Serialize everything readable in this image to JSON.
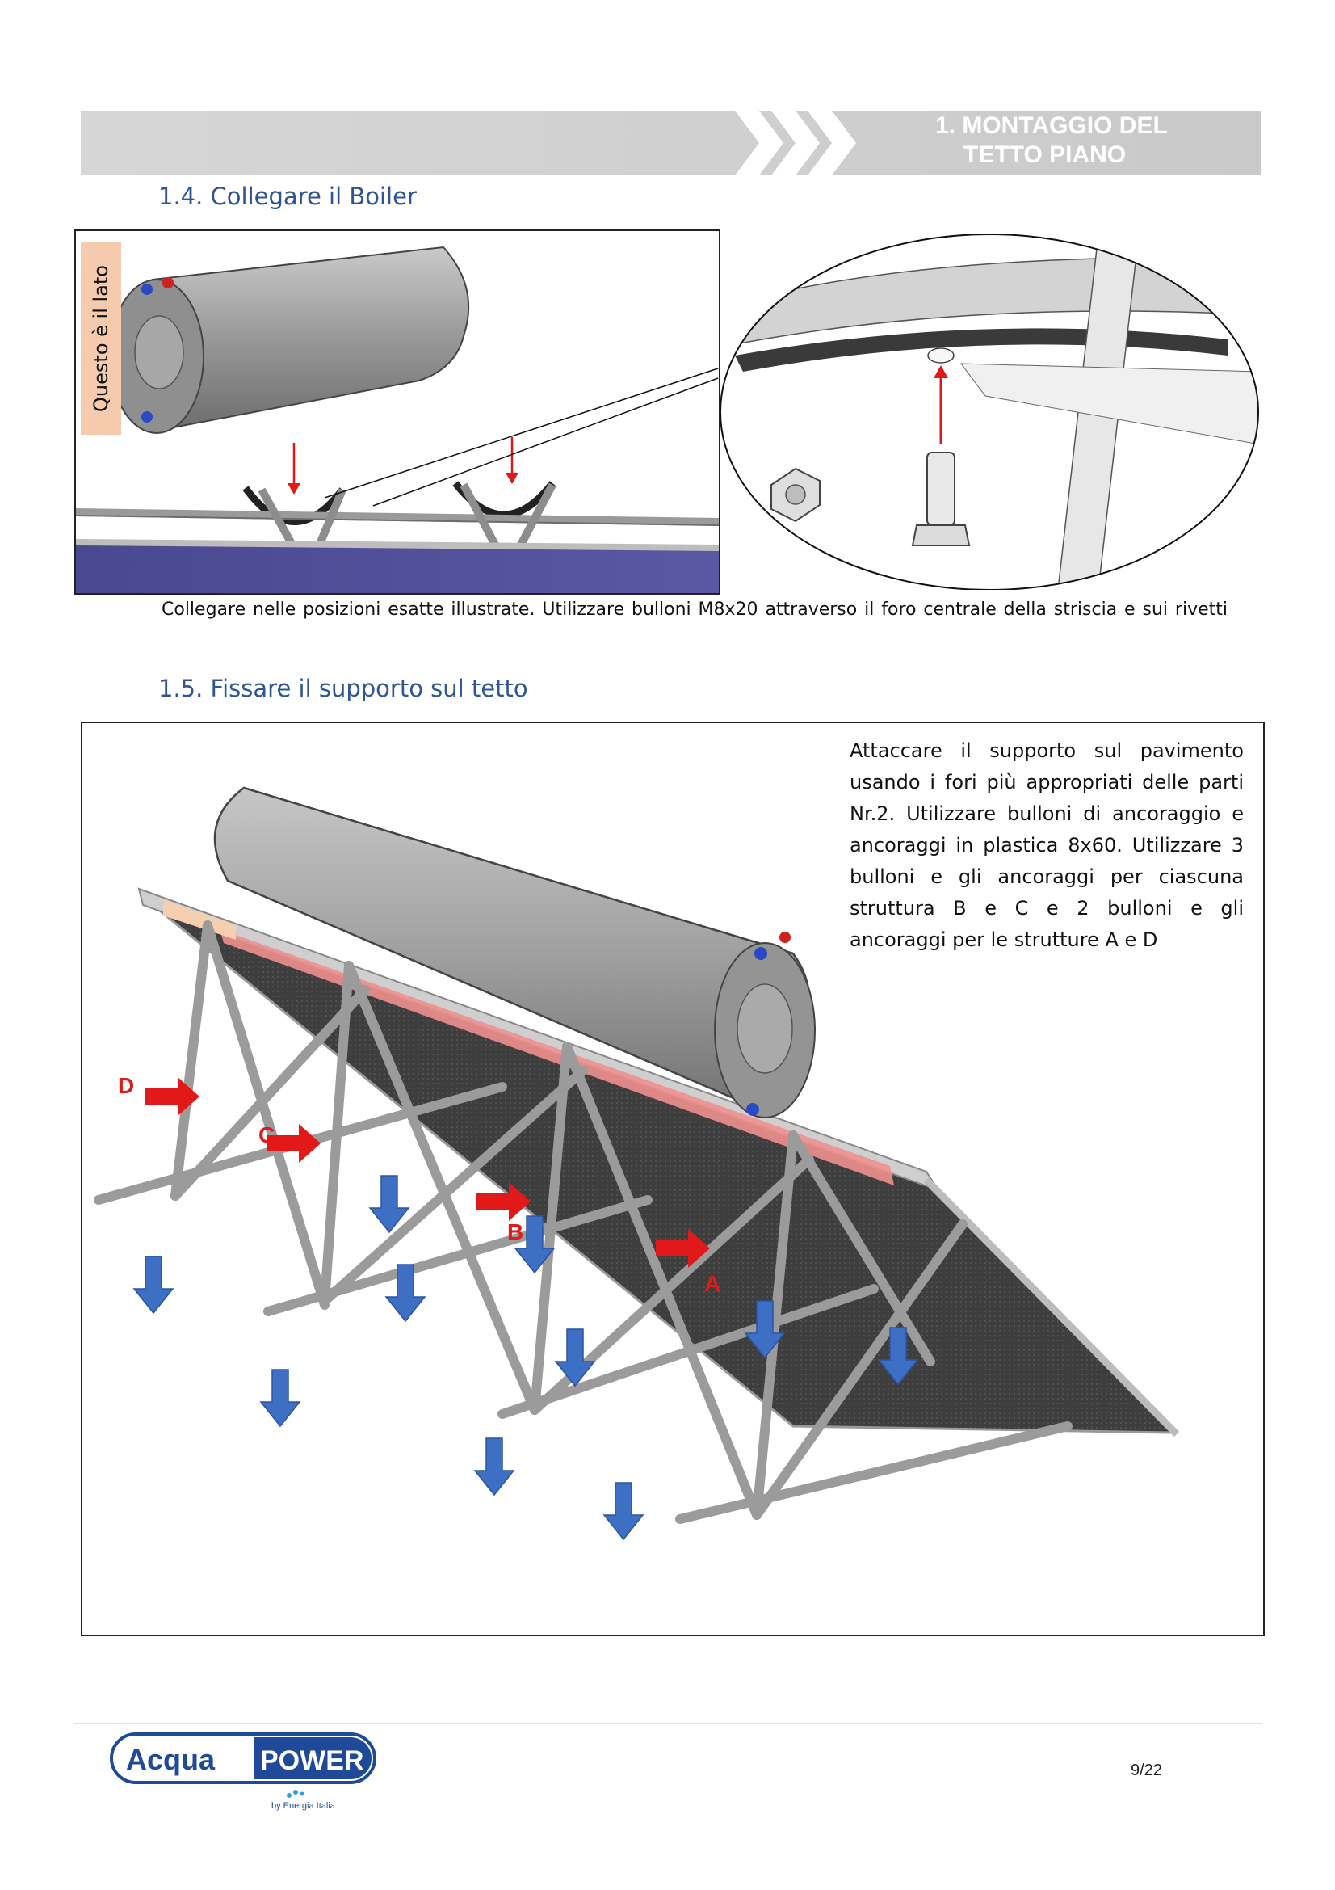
{
  "header": {
    "title_line1": "1.  MONTAGGIO DEL",
    "title_line2": "TETTO PIANO"
  },
  "section_1_4": {
    "heading": "1.4. Collegare il Boiler",
    "side_label": "Questo è il lato",
    "caption": "Collegare nelle posizioni esatte illustrate. Utilizzare bulloni M8x20 attraverso il foro centrale della striscia e sui rivetti"
  },
  "section_1_5": {
    "heading": "1.5. Fissare il supporto sul tetto",
    "instructions": "Attaccare il supporto sul pavimento usando i fori più appropriati delle parti Nr.2. Utilizzare bulloni di ancoraggio e ancoraggi in plastica 8x60. Utilizzare 3 bulloni e gli ancoraggi per ciascuna struttura B e C e 2 bulloni e gli ancoraggi per le strutture A e D",
    "labels": {
      "a": "A",
      "b": "B",
      "c": "C",
      "d": "D"
    }
  },
  "footer": {
    "logo_word1": "Acqua",
    "logo_word2": "POWER",
    "logo_sub": "by Energia Italia",
    "page_number": "9/22"
  },
  "colors": {
    "heading_blue": "#2f5597",
    "header_band": "#d0d0d0",
    "side_label_bg": "#f6cbad",
    "arrow_red": "#e11919",
    "arrow_blue": "#3d6fc4"
  }
}
